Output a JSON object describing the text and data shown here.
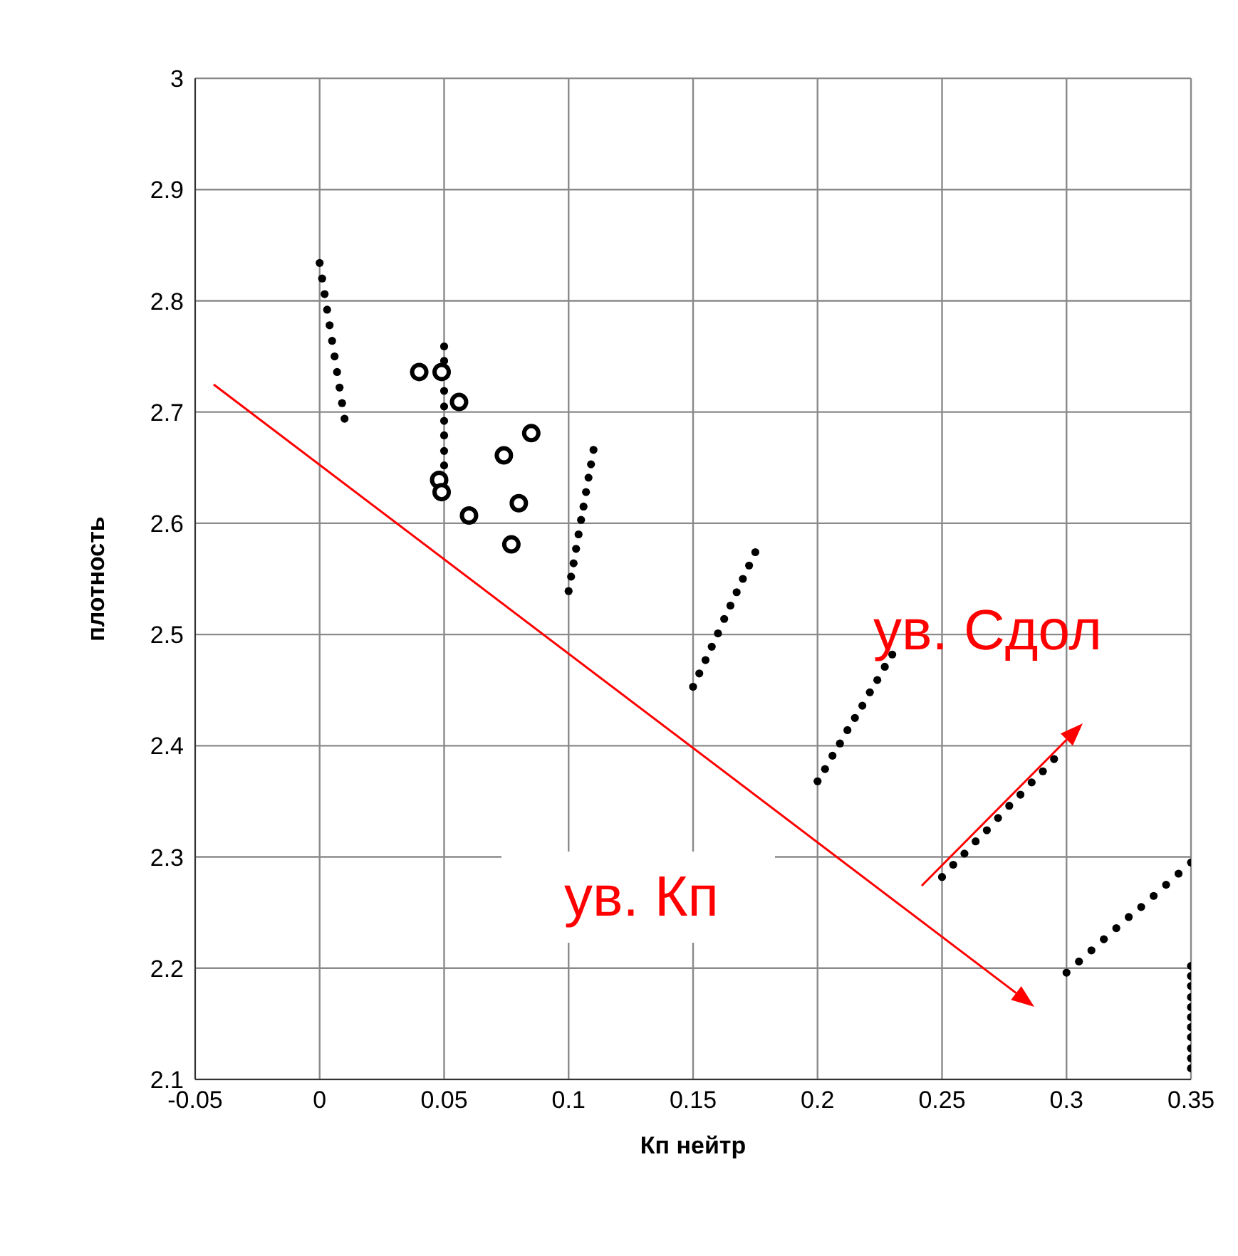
{
  "chart_data": {
    "type": "scatter",
    "xlabel": "Кп нейтр",
    "ylabel": "плотность",
    "xlim": [
      -0.05,
      0.35
    ],
    "xticks": [
      -0.05,
      0,
      0.05,
      0.1,
      0.15,
      0.2,
      0.25,
      0.3,
      0.35
    ],
    "ylim": [
      2.1,
      3
    ],
    "yticks": [
      2.1,
      2.2,
      2.3,
      2.4,
      2.5,
      2.6,
      2.7,
      2.8,
      2.9,
      3
    ],
    "grid": true,
    "marker": "circle",
    "legend": false,
    "annotations": [
      "ув. Сдол",
      "ув. Кп"
    ],
    "series": [
      {
        "color": "#000000",
        "x": [
          0,
          0.001,
          0.002,
          0.003,
          0.004,
          0.005,
          0.006,
          0.007,
          0.008,
          0.009,
          0.01
        ],
        "values": [
          2.834,
          2.82,
          2.806,
          2.792,
          2.778,
          2.764,
          2.75,
          2.736,
          2.722,
          2.708,
          2.694
        ]
      },
      {
        "color": "#000000",
        "x": [
          0.05,
          0.05,
          0.05,
          0.05,
          0.05,
          0.05,
          0.05,
          0.05
        ],
        "values": [
          2.759,
          2.746,
          2.719,
          2.705,
          2.692,
          2.679,
          2.665,
          2.652
        ]
      },
      {
        "color": "#000000",
        "x": [
          0.1,
          0.101,
          0.102,
          0.103,
          0.104,
          0.105,
          0.106,
          0.107,
          0.108,
          0.109,
          0.11
        ],
        "values": [
          2.539,
          2.552,
          2.564,
          2.577,
          2.59,
          2.603,
          2.615,
          2.628,
          2.641,
          2.653,
          2.666
        ]
      },
      {
        "color": "#000000",
        "x": [
          0.15,
          0.1525,
          0.155,
          0.1575,
          0.16,
          0.1625,
          0.165,
          0.1675,
          0.17,
          0.1725,
          0.175
        ],
        "values": [
          2.453,
          2.465,
          2.477,
          2.489,
          2.501,
          2.514,
          2.526,
          2.538,
          2.55,
          2.562,
          2.574
        ]
      },
      {
        "color": "#000000",
        "x": [
          0.2,
          0.203,
          0.206,
          0.209,
          0.212,
          0.215,
          0.218,
          0.221,
          0.224,
          0.227,
          0.23
        ],
        "values": [
          2.368,
          2.379,
          2.391,
          2.402,
          2.414,
          2.425,
          2.436,
          2.448,
          2.459,
          2.471,
          2.482
        ]
      },
      {
        "color": "#000000",
        "x": [
          0.25,
          0.2545,
          0.259,
          0.2635,
          0.268,
          0.2725,
          0.277,
          0.2815,
          0.286,
          0.2905,
          0.295
        ],
        "values": [
          2.282,
          2.293,
          2.303,
          2.314,
          2.324,
          2.335,
          2.346,
          2.356,
          2.367,
          2.377,
          2.388
        ]
      },
      {
        "color": "#000000",
        "x": [
          0.3,
          0.305,
          0.31,
          0.315,
          0.32,
          0.325,
          0.33,
          0.335,
          0.34,
          0.345,
          0.35
        ],
        "values": [
          2.196,
          2.206,
          2.216,
          2.226,
          2.236,
          2.246,
          2.255,
          2.265,
          2.275,
          2.285,
          2.295
        ]
      },
      {
        "color": "#000000",
        "x": [
          0.35,
          0.35,
          0.35,
          0.35,
          0.35,
          0.35,
          0.35,
          0.35,
          0.35,
          0.35,
          0.35
        ],
        "values": [
          2.202,
          2.193,
          2.184,
          2.174,
          2.165,
          2.156,
          2.147,
          2.138,
          2.128,
          2.119,
          2.11
        ]
      },
      {
        "color": "#000000",
        "x": [
          0.04,
          0.049,
          0.056,
          0.048,
          0.049,
          0.06,
          0.074,
          0.085,
          0.08,
          0.077
        ],
        "values": [
          2.736,
          2.736,
          2.709,
          2.639,
          2.628,
          2.607,
          2.661,
          2.681,
          2.618,
          2.581
        ]
      }
    ]
  }
}
